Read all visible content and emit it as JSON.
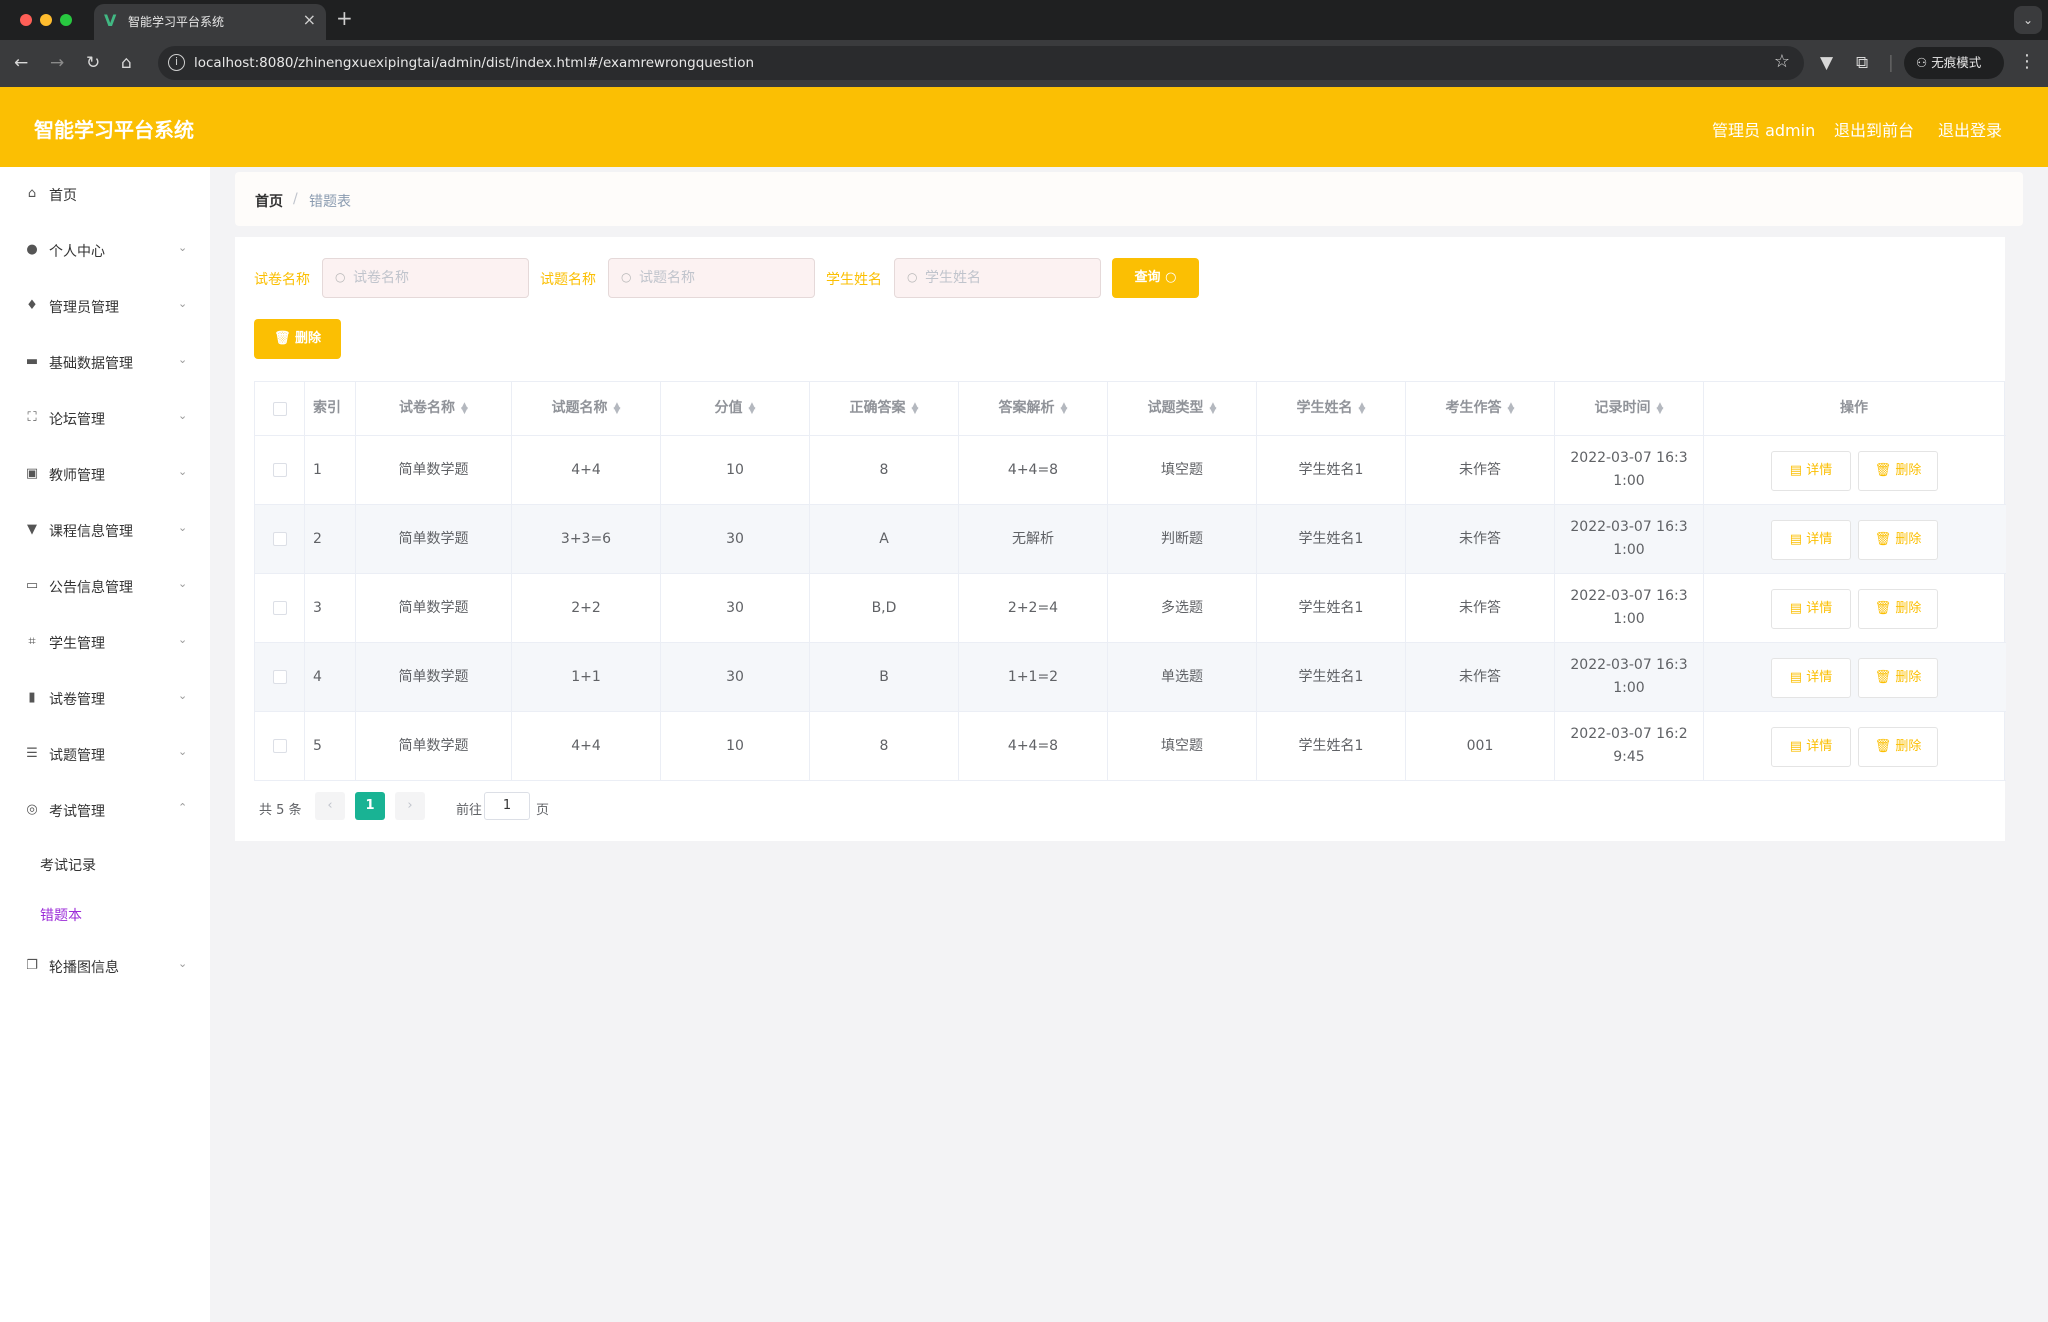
{
  "browser": {
    "tab_title": "智能学习平台系统",
    "url": "localhost:8080/zhinengxuexipingtai/admin/dist/index.html#/examrewrongquestion",
    "incognito_label": "无痕模式",
    "traffic_colors": [
      "#fe5f57",
      "#febc2e",
      "#28c840"
    ]
  },
  "header": {
    "title": "智能学习平台系统",
    "user_label": "管理员 admin",
    "to_front_label": "退出到前台",
    "logout_label": "退出登录",
    "background": "#fbbf03"
  },
  "sidebar": {
    "items": [
      {
        "label": "首页",
        "icon": "home-icon"
      },
      {
        "label": "个人中心",
        "icon": "user-icon"
      },
      {
        "label": "管理员管理",
        "icon": "admin-icon"
      },
      {
        "label": "基础数据管理",
        "icon": "ticket-icon"
      },
      {
        "label": "论坛管理",
        "icon": "forum-icon"
      },
      {
        "label": "教师管理",
        "icon": "teacher-icon"
      },
      {
        "label": "课程信息管理",
        "icon": "course-icon"
      },
      {
        "label": "公告信息管理",
        "icon": "notice-icon"
      },
      {
        "label": "学生管理",
        "icon": "crop-icon"
      },
      {
        "label": "试卷管理",
        "icon": "chart-icon"
      },
      {
        "label": "试题管理",
        "icon": "list-icon"
      },
      {
        "label": "考试管理",
        "icon": "compass-icon"
      },
      {
        "label": "轮播图信息",
        "icon": "copy-icon"
      }
    ],
    "exam_submenu": [
      "考试记录",
      "错题本"
    ],
    "active_color": "#9b2bd8"
  },
  "breadcrumb": {
    "home": "首页",
    "separator": "/",
    "current": "错题表"
  },
  "filters": {
    "paper_label": "试卷名称",
    "paper_placeholder": "试卷名称",
    "question_label": "试题名称",
    "question_placeholder": "试题名称",
    "student_label": "学生姓名",
    "student_placeholder": "学生姓名",
    "query_label": "查询",
    "delete_label": "删除"
  },
  "table": {
    "columns": [
      "索引",
      "试卷名称",
      "试题名称",
      "分值",
      "正确答案",
      "答案解析",
      "试题类型",
      "学生姓名",
      "考生作答",
      "记录时间",
      "操作"
    ],
    "rows": [
      {
        "index": "1",
        "paper": "简单数学题",
        "question": "4+4",
        "score": "10",
        "answer": "8",
        "analysis": "4+4=8",
        "type": "填空题",
        "student": "学生姓名1",
        "response": "未作答",
        "time": "2022-03-07 16:31:00"
      },
      {
        "index": "2",
        "paper": "简单数学题",
        "question": "3+3=6",
        "score": "30",
        "answer": "A",
        "analysis": "无解析",
        "type": "判断题",
        "student": "学生姓名1",
        "response": "未作答",
        "time": "2022-03-07 16:31:00"
      },
      {
        "index": "3",
        "paper": "简单数学题",
        "question": "2+2",
        "score": "30",
        "answer": "B,D",
        "analysis": "2+2=4",
        "type": "多选题",
        "student": "学生姓名1",
        "response": "未作答",
        "time": "2022-03-07 16:31:00"
      },
      {
        "index": "4",
        "paper": "简单数学题",
        "question": "1+1",
        "score": "30",
        "answer": "B",
        "analysis": "1+1=2",
        "type": "单选题",
        "student": "学生姓名1",
        "response": "未作答",
        "time": "2022-03-07 16:31:00"
      },
      {
        "index": "5",
        "paper": "简单数学题",
        "question": "4+4",
        "score": "10",
        "answer": "8",
        "analysis": "4+4=8",
        "type": "填空题",
        "student": "学生姓名1",
        "response": "001",
        "time": "2022-03-07 16:29:45"
      }
    ],
    "detail_label": "详情",
    "delete_label": "删除"
  },
  "pagination": {
    "total_label": "共 5 条",
    "current_page": "1",
    "goto_label": "前往",
    "goto_value": "1",
    "page_suffix": "页",
    "active_color": "#19b394"
  }
}
